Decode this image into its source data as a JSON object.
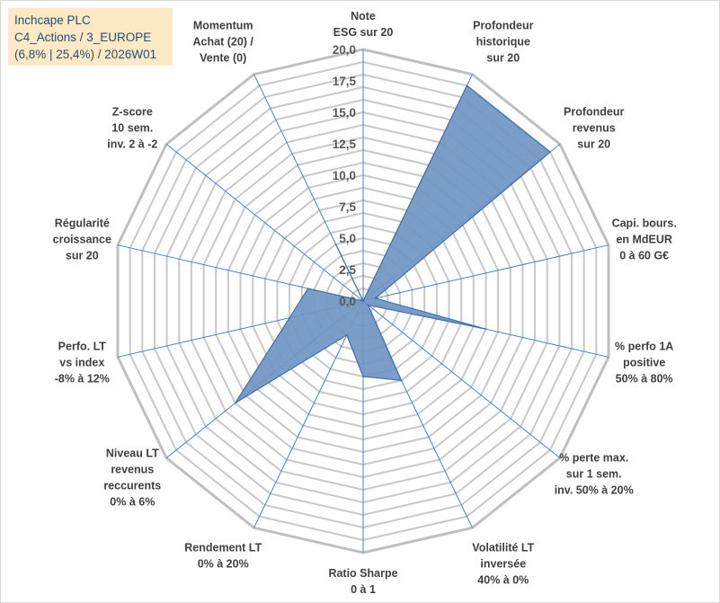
{
  "header": {
    "line1": "Inchcape PLC",
    "line2": "C4_Actions / 3_EUROPE",
    "line3": "(6,8% | 25,4%) / 2026W01"
  },
  "colors": {
    "series_fill": "#7096c4",
    "series_line": "#3e6fb0",
    "grid": "#c8c8c8",
    "spoke": "#4f7fc0",
    "title_bg": "#fde9c4",
    "title_text": "#1f4e79"
  },
  "chart_data": {
    "type": "radar",
    "range": [
      0,
      20
    ],
    "tick_step": 2.5,
    "grid_rings": 20,
    "tick_labels": [
      "0,0",
      "2,5",
      "5,0",
      "7,5",
      "10,0",
      "12,5",
      "15,0",
      "17,5",
      "20,0"
    ],
    "axes": [
      [
        "Note",
        "ESG sur 20"
      ],
      [
        "Profondeur",
        "historique",
        "sur 20"
      ],
      [
        "Profondeur",
        "revenus",
        "sur 20"
      ],
      [
        "Capi. bours.",
        "en MdEUR",
        "0 à 60 G€"
      ],
      [
        "% perfo 1A",
        "positive",
        "50% à 80%"
      ],
      [
        "% perte max.",
        "sur 1 sem.",
        "inv. 50% à 20%"
      ],
      [
        "Volatilité LT",
        "inversée",
        "40% à 0%"
      ],
      [
        "Ratio Sharpe",
        "0 à 1"
      ],
      [
        "Rendement LT",
        "0% à 20%"
      ],
      [
        "Niveau LT",
        "revenus",
        "reccurents",
        "0% à 6%"
      ],
      [
        "Perfo. LT",
        "vs index",
        "-8% à 12%"
      ],
      [
        "Régularité",
        "croissance",
        "sur 20"
      ],
      [
        "Z-score",
        "10 sem.",
        "inv. 2 à -2"
      ],
      [
        "Momentum",
        "Achat (20) /",
        "Vente (0)"
      ]
    ],
    "values": [
      0,
      19.0,
      19.0,
      1.0,
      10.0,
      0.5,
      7.0,
      6.0,
      3.0,
      13.0,
      6.0,
      4.5,
      0.0,
      5.0
    ]
  }
}
